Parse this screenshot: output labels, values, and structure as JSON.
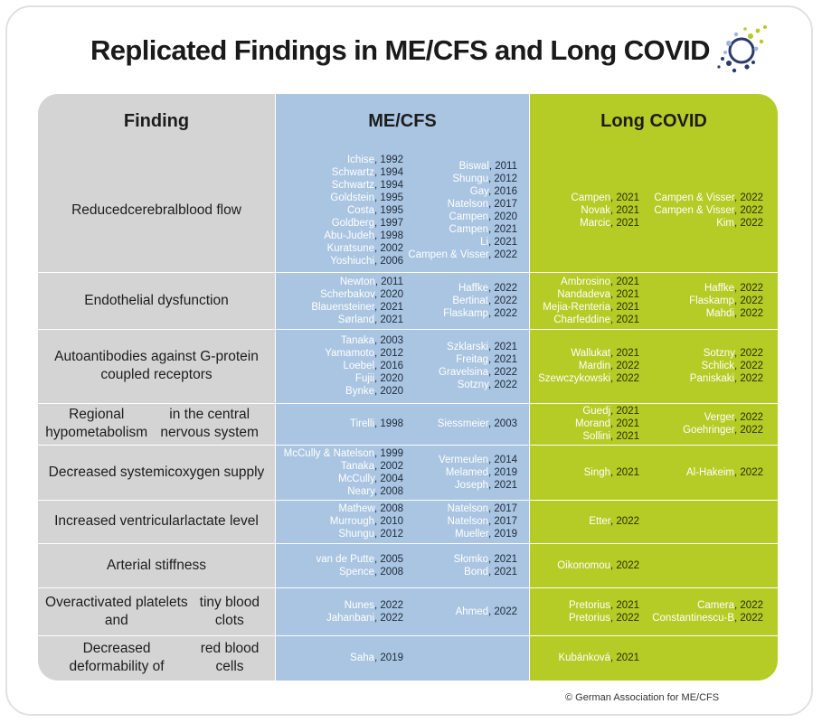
{
  "title": "Replicated Findings in ME/CFS and Long COVID",
  "footer": "© German Association for ME/CFS",
  "colors": {
    "finding_col": "#d4d4d4",
    "mecfs_col": "#a9c5e1",
    "longcovid_col": "#b5cb26"
  },
  "headers": {
    "finding": "Finding",
    "mecfs": "ME/CFS",
    "longcovid": "Long COVID"
  },
  "rows": [
    {
      "finding": "Reduced\ncerebral\nblood flow",
      "me_left": [
        [
          "Ichise",
          ", 1992"
        ],
        [
          "Schwartz",
          ", 1994"
        ],
        [
          "Schwartz",
          ", 1994"
        ],
        [
          "Goldstein",
          ", 1995"
        ],
        [
          "Costa",
          ", 1995"
        ],
        [
          "Goldberg",
          ", 1997"
        ],
        [
          "Abu-Judeh",
          ", 1998"
        ],
        [
          "Kuratsune",
          ", 2002"
        ],
        [
          "Yoshiuchi",
          ", 2006"
        ]
      ],
      "me_right": [
        [
          "Biswal",
          ", 2011"
        ],
        [
          "Shungu",
          ", 2012"
        ],
        [
          "Gay",
          ", 2016"
        ],
        [
          "Natelson",
          ", 2017"
        ],
        [
          "Campen",
          ", 2020"
        ],
        [
          "Campen",
          ", 2021"
        ],
        [
          "Li",
          ", 2021"
        ],
        [
          "Campen & Visser",
          ", 2022"
        ]
      ],
      "lc_left": [
        [
          "Campen",
          ", 2021"
        ],
        [
          "Novak",
          ", 2021"
        ],
        [
          "Marcic",
          ", 2021"
        ]
      ],
      "lc_right": [
        [
          "Campen & Visser",
          ", 2022"
        ],
        [
          "Campen & Visser",
          ", 2022"
        ],
        [
          "Kim",
          ", 2022"
        ]
      ]
    },
    {
      "finding": "Endothelial dysfunction",
      "me_left": [
        [
          "Newton",
          ", 2011"
        ],
        [
          "Scherbakov",
          ", 2020"
        ],
        [
          "Blauensteiner",
          ", 2021"
        ],
        [
          "Sørland",
          ", 2021"
        ]
      ],
      "me_right": [
        [
          "Haffke",
          ", 2022"
        ],
        [
          "Bertinat",
          ", 2022"
        ],
        [
          "Flaskamp",
          ", 2022"
        ]
      ],
      "lc_left": [
        [
          "Ambrosino",
          ", 2021"
        ],
        [
          "Nandadeva",
          ", 2021"
        ],
        [
          "Mejia-Renteria",
          ", 2021"
        ],
        [
          "Charfeddine",
          ", 2021"
        ]
      ],
      "lc_right": [
        [
          "Haffke",
          ", 2022"
        ],
        [
          "Flaskamp",
          ", 2022"
        ],
        [
          "Mahdi",
          ", 2022"
        ]
      ]
    },
    {
      "finding": "Autoantibodies against G-protein coupled receptors",
      "me_left": [
        [
          "Tanaka",
          ", 2003"
        ],
        [
          "Yamamoto",
          ", 2012"
        ],
        [
          "Loebel",
          ", 2016"
        ],
        [
          "Fujii",
          ", 2020"
        ],
        [
          "Bynke",
          ", 2020"
        ]
      ],
      "me_right": [
        [
          "Szklarski",
          ", 2021"
        ],
        [
          "Freitag",
          ", 2021"
        ],
        [
          "Gravelsina",
          ", 2022"
        ],
        [
          "Sotzny",
          ", 2022"
        ]
      ],
      "lc_left": [
        [
          "Wallukat",
          ", 2021"
        ],
        [
          "Mardin",
          ", 2022"
        ],
        [
          "Szewczykowski",
          ", 2022"
        ]
      ],
      "lc_right": [
        [
          "Sotzny",
          ", 2022"
        ],
        [
          "Schlick",
          ", 2022"
        ],
        [
          "Paniskaki",
          ", 2022"
        ]
      ]
    },
    {
      "finding": "Regional hypometabolism\nin the central nervous system",
      "me_left": [
        [
          "Tirelli",
          ", 1998"
        ]
      ],
      "me_right": [
        [
          "Siessmeier",
          ", 2003"
        ]
      ],
      "lc_left": [
        [
          "Guedj",
          ", 2021"
        ],
        [
          "Morand",
          ", 2021"
        ],
        [
          "Sollini",
          ", 2021"
        ]
      ],
      "lc_right": [
        [
          "Verger",
          ", 2022"
        ],
        [
          "Goehringer",
          ", 2022"
        ]
      ]
    },
    {
      "finding": "Decreased systemic\noxygen supply",
      "me_left": [
        [
          "McCully & Natelson",
          ", 1999"
        ],
        [
          "Tanaka",
          ", 2002"
        ],
        [
          "McCully",
          ", 2004"
        ],
        [
          "Neary",
          ", 2008"
        ]
      ],
      "me_right": [
        [
          "Vermeulen",
          ", 2014"
        ],
        [
          "Melamed",
          ", 2019"
        ],
        [
          "Joseph",
          ", 2021"
        ]
      ],
      "lc_left": [
        [
          "Singh",
          ", 2021"
        ]
      ],
      "lc_right": [
        [
          "Al-Hakeim",
          ", 2022"
        ]
      ]
    },
    {
      "finding": "Increased ventricular\nlactate level",
      "me_left": [
        [
          "Mathew",
          ", 2008"
        ],
        [
          "Murrough",
          ", 2010"
        ],
        [
          "Shungu",
          ", 2012"
        ]
      ],
      "me_right": [
        [
          "Natelson",
          ", 2017"
        ],
        [
          "Natelson",
          ", 2017"
        ],
        [
          "Mueller",
          ", 2019"
        ]
      ],
      "lc_left": [
        [
          "Etter",
          ", 2022"
        ]
      ],
      "lc_right": []
    },
    {
      "finding": "Arterial stiffness",
      "me_left": [
        [
          "van de Putte",
          ", 2005"
        ],
        [
          "Spence",
          ", 2008"
        ]
      ],
      "me_right": [
        [
          "Słomko",
          ", 2021"
        ],
        [
          "Bond",
          ", 2021"
        ]
      ],
      "lc_left": [
        [
          "Oikonomou",
          ", 2022"
        ]
      ],
      "lc_right": []
    },
    {
      "finding": "Overactivated platelets and\ntiny blood clots",
      "me_left": [
        [
          "Nunes",
          ", 2022"
        ],
        [
          "Jahanbani",
          ", 2022"
        ]
      ],
      "me_right": [
        [
          "Ahmed",
          ", 2022"
        ]
      ],
      "lc_left": [
        [
          "Pretorius",
          ", 2021"
        ],
        [
          "Pretorius",
          ", 2022"
        ]
      ],
      "lc_right": [
        [
          "Camera",
          ", 2022"
        ],
        [
          "Constantinescu-B",
          ", 2022"
        ]
      ]
    },
    {
      "finding": "Decreased deformability of\nred blood cells",
      "me_left": [
        [
          "Saha",
          ", 2019"
        ]
      ],
      "me_right": [],
      "lc_left": [
        [
          "Kubánková",
          ", 2021"
        ]
      ],
      "lc_right": []
    }
  ]
}
